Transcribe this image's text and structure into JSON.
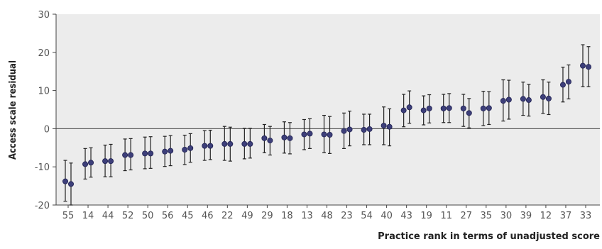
{
  "chart_data": {
    "type": "scatter",
    "title": "",
    "xlabel": "Practice rank in terms of unadjusted score",
    "ylabel": "Access scale residual",
    "ylim": [
      -20,
      30
    ],
    "yticks": [
      -20,
      -10,
      0,
      10,
      20,
      30
    ],
    "grid": false,
    "background": "#ececec",
    "point_color": "#3d3f7a",
    "errorbar_color": "#222222",
    "categories": [
      "55",
      "14",
      "44",
      "52",
      "50",
      "56",
      "45",
      "46",
      "22",
      "49",
      "29",
      "18",
      "13",
      "48",
      "23",
      "54",
      "40",
      "43",
      "19",
      "11",
      "27",
      "35",
      "30",
      "39",
      "12",
      "37",
      "33"
    ],
    "series": [
      {
        "values": [
          -13.8,
          -9.3,
          -8.5,
          -6.9,
          -6.5,
          -6.0,
          -5.5,
          -4.5,
          -4.0,
          -4.0,
          -2.5,
          -2.3,
          -1.5,
          -1.5,
          -0.6,
          -0.3,
          0.8,
          4.8,
          4.8,
          5.3,
          5.3,
          5.3,
          7.3,
          7.8,
          8.3,
          11.5,
          16.5
        ],
        "lower": [
          -19.0,
          -13.2,
          -12.6,
          -11.0,
          -10.5,
          -9.9,
          -9.4,
          -8.3,
          -8.3,
          -7.9,
          -6.3,
          -6.4,
          -5.5,
          -6.3,
          -5.2,
          -4.2,
          -4.2,
          0.5,
          1.0,
          1.6,
          0.6,
          0.8,
          2.0,
          3.5,
          4.0,
          7.0,
          11.0
        ],
        "upper": [
          -8.3,
          -5.2,
          -4.3,
          -2.7,
          -2.2,
          -2.0,
          -1.7,
          -0.5,
          0.6,
          0.1,
          1.1,
          1.8,
          2.4,
          3.5,
          4.1,
          3.8,
          5.7,
          9.0,
          8.6,
          9.0,
          9.0,
          9.8,
          12.8,
          12.2,
          12.8,
          16.1,
          22.0
        ]
      },
      {
        "values": [
          -14.5,
          -8.9,
          -8.5,
          -6.9,
          -6.5,
          -5.8,
          -5.1,
          -4.5,
          -4.0,
          -4.0,
          -3.1,
          -2.5,
          -1.3,
          -1.6,
          -0.2,
          -0.1,
          0.5,
          5.6,
          5.3,
          5.4,
          4.1,
          5.4,
          7.6,
          7.5,
          7.9,
          12.3,
          16.2
        ],
        "lower": [
          -20.0,
          -12.7,
          -12.6,
          -10.8,
          -10.4,
          -9.7,
          -8.8,
          -8.1,
          -8.5,
          -7.7,
          -6.9,
          -6.6,
          -5.2,
          -6.5,
          -4.5,
          -4.2,
          -4.5,
          1.4,
          1.5,
          1.6,
          0.2,
          1.1,
          2.5,
          3.3,
          3.7,
          7.8,
          11.0
        ],
        "upper": [
          -9.0,
          -5.0,
          -4.1,
          -2.6,
          -2.1,
          -1.8,
          -1.3,
          -0.4,
          0.4,
          0.1,
          0.6,
          1.6,
          2.6,
          3.2,
          4.6,
          3.8,
          5.2,
          9.9,
          8.9,
          9.2,
          7.9,
          9.7,
          12.7,
          11.6,
          12.2,
          16.7,
          21.5
        ]
      }
    ]
  }
}
